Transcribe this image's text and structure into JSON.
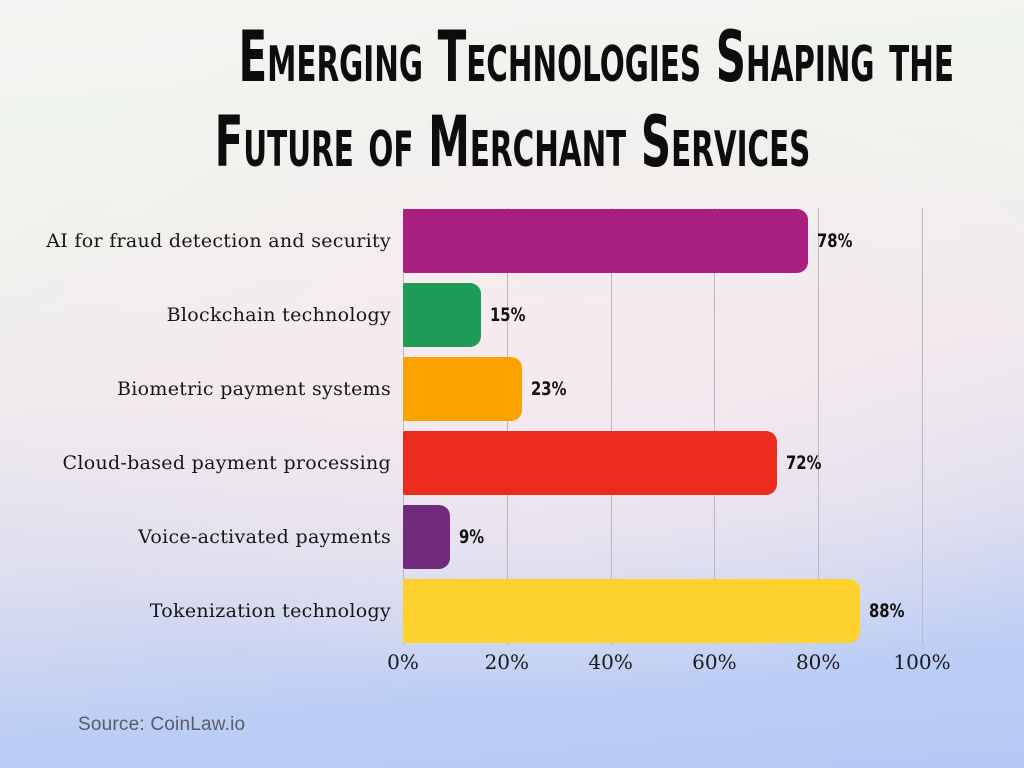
{
  "title": {
    "line1": "Emerging Technologies Shaping the",
    "line2": "Future of Merchant Services"
  },
  "source": "Source: CoinLaw.io",
  "chart_data": {
    "type": "bar",
    "orientation": "horizontal",
    "title": "Emerging Technologies Shaping the Future of Merchant Services",
    "categories": [
      "AI for fraud detection and security",
      "Blockchain technology",
      "Biometric payment systems",
      "Cloud-based payment processing",
      "Voice-activated payments",
      "Tokenization technology"
    ],
    "values": [
      78,
      15,
      23,
      72,
      9,
      88
    ],
    "value_labels": [
      "78%",
      "15%",
      "23%",
      "72%",
      "9%",
      "88%"
    ],
    "bar_colors": [
      "#A91F80",
      "#1E9C57",
      "#FAA300",
      "#EA2B1E",
      "#712B7D",
      "#FED22D"
    ],
    "xlabel": "",
    "ylabel": "",
    "xlim": [
      0,
      100
    ],
    "x_ticks": [
      0,
      20,
      40,
      60,
      80,
      100
    ],
    "x_tick_labels": [
      "0%",
      "20%",
      "40%",
      "60%",
      "80%",
      "100%"
    ],
    "grid": "vertical",
    "legend": "none",
    "gridline_color": "#bdb9bf"
  }
}
